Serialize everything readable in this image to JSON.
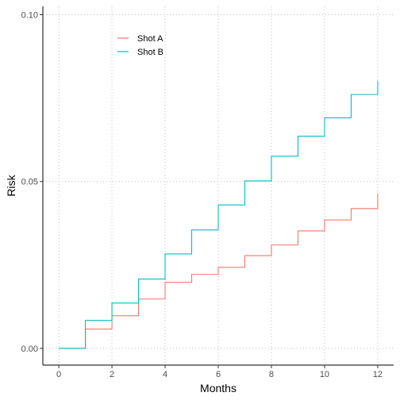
{
  "chart_data": {
    "type": "line",
    "step": true,
    "title": "",
    "xlabel": "Months",
    "ylabel": "Risk",
    "xlim": [
      -0.6,
      12.6
    ],
    "ylim": [
      -0.005,
      0.1025
    ],
    "xticks": [
      0,
      2,
      4,
      6,
      8,
      10,
      12
    ],
    "xtick_labels": [
      "0",
      "2",
      "4",
      "6",
      "8",
      "10",
      "12"
    ],
    "yticks": [
      0.0,
      0.05,
      0.1
    ],
    "ytick_labels": [
      "0.00",
      "0.05",
      "0.10"
    ],
    "grid": true,
    "legend_position": "top-left",
    "x": [
      0,
      1,
      2,
      3,
      4,
      5,
      6,
      7,
      8,
      9,
      10,
      11,
      12
    ],
    "series": [
      {
        "name": "Shot A",
        "color": "#F8766D",
        "values": [
          0.0,
          0.0058,
          0.0098,
          0.0148,
          0.0198,
          0.0222,
          0.0243,
          0.0278,
          0.031,
          0.0352,
          0.0385,
          0.0419,
          0.0465
        ]
      },
      {
        "name": "Shot B",
        "color": "#00BFC4",
        "values": [
          0.0,
          0.0084,
          0.0136,
          0.0208,
          0.0283,
          0.0355,
          0.043,
          0.0502,
          0.0576,
          0.0636,
          0.0691,
          0.0761,
          0.0802
        ]
      }
    ]
  }
}
